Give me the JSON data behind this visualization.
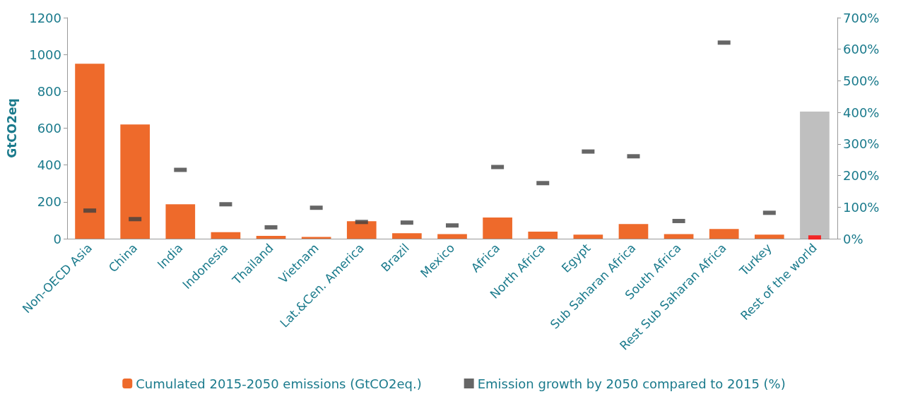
{
  "chart_data": {
    "type": "bar",
    "ylabel": "GtCO2eq",
    "categories": [
      "Non-OECD Asia",
      "China",
      "India",
      "Indonesia",
      "Thailand",
      "Vietnam",
      "Lat.&Cen. America",
      "Brazil",
      "Mexico",
      "Africa",
      "North Africa",
      "Egypt",
      "Sub Saharan Africa",
      "South Africa",
      "Rest Sub Saharan Africa",
      "Turkey",
      "Rest of the world"
    ],
    "series": [
      {
        "name": "Cumulated 2015-2050 emissions (GtCO2eq.)",
        "color": "#ee6a2b",
        "colors": [
          "#ee6a2b",
          "#ee6a2b",
          "#ee6a2b",
          "#ee6a2b",
          "#ee6a2b",
          "#ee6a2b",
          "#ee6a2b",
          "#ee6a2b",
          "#ee6a2b",
          "#ee6a2b",
          "#ee6a2b",
          "#ee6a2b",
          "#ee6a2b",
          "#ee6a2b",
          "#ee6a2b",
          "#ee6a2b",
          "#bfbfbf"
        ],
        "values": [
          950,
          620,
          187,
          35,
          15,
          10,
          95,
          30,
          25,
          115,
          38,
          22,
          80,
          25,
          53,
          22,
          690
        ]
      },
      {
        "name": "Emission growth by 2050 compared to 2015 (%)",
        "type": "scatter",
        "axis": "y2",
        "marker": "square",
        "color": "#404040",
        "colors": [
          "#404040",
          "#404040",
          "#404040",
          "#404040",
          "#404040",
          "#404040",
          "#404040",
          "#404040",
          "#404040",
          "#404040",
          "#404040",
          "#404040",
          "#404040",
          "#404040",
          "#404040",
          "#404040",
          "#ff0000"
        ],
        "values": [
          89,
          62,
          218,
          109,
          36,
          98,
          53,
          51,
          42,
          227,
          176,
          276,
          261,
          56,
          621,
          82,
          4
        ]
      }
    ],
    "ylim": [
      0,
      1200
    ],
    "yticks": [
      0,
      200,
      400,
      600,
      800,
      1000,
      1200
    ],
    "y2lim": [
      0,
      700
    ],
    "y2ticks": [
      {
        "value": 0,
        "label": "0%"
      },
      {
        "value": 100,
        "label": "100%"
      },
      {
        "value": 200,
        "label": "200%"
      },
      {
        "value": 300,
        "label": "300%"
      },
      {
        "value": 400,
        "label": "400%"
      },
      {
        "value": 500,
        "label": "500%"
      },
      {
        "value": 600,
        "label": "600%"
      },
      {
        "value": 700,
        "label": "700%"
      }
    ],
    "legend": "bottom"
  }
}
